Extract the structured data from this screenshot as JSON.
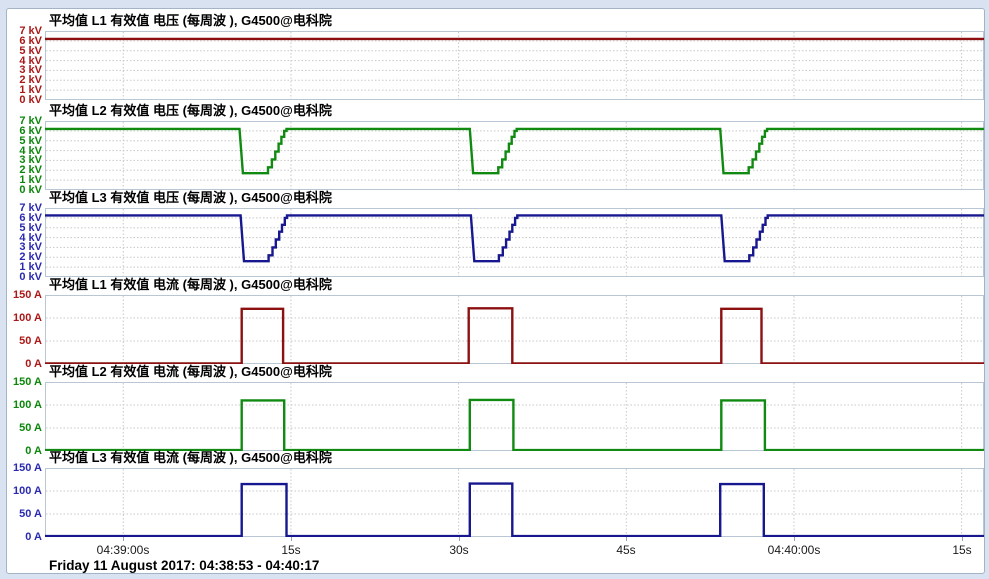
{
  "status_bar": {
    "text": "Friday 11 August 2017: 04:38:53 - 04:40:17"
  },
  "chart_data": {
    "type": "line",
    "layout": "6 stacked strip charts, shared time axis",
    "x_axis": {
      "duration_s": 84,
      "grid": true,
      "ticks": [
        {
          "t": 7,
          "label": "04:39:00s"
        },
        {
          "t": 22,
          "label": "15s"
        },
        {
          "t": 37,
          "label": "30s"
        },
        {
          "t": 52,
          "label": "45s"
        },
        {
          "t": 67,
          "label": "04:40:00s"
        },
        {
          "t": 82,
          "label": "15s"
        }
      ]
    },
    "charts": [
      {
        "id": "l1-voltage",
        "title": "平均值 L1 有效值 电压 (每周波 ), G4500@电科院",
        "unit": "kV",
        "trace_color": "#8c1010",
        "axis_color": "#aa1818",
        "ylim": [
          0,
          7
        ],
        "yticks": [
          {
            "v": 7,
            "label": "7 kV"
          },
          {
            "v": 6,
            "label": "6 kV"
          },
          {
            "v": 5,
            "label": "5 kV"
          },
          {
            "v": 4,
            "label": "4 kV"
          },
          {
            "v": 3,
            "label": "3 kV"
          },
          {
            "v": 2,
            "label": "2 kV"
          },
          {
            "v": 1,
            "label": "1 kV"
          },
          {
            "v": 0,
            "label": "0 kV"
          }
        ],
        "grid_y": [
          1,
          2,
          3,
          4,
          5,
          6
        ],
        "points": [
          [
            0,
            6.2
          ],
          [
            84,
            6.2
          ]
        ]
      },
      {
        "id": "l2-voltage",
        "title": "平均值 L2 有效值 电压 (每周波 ), G4500@电科院",
        "unit": "kV",
        "trace_color": "#108a10",
        "axis_color": "#0c860c",
        "ylim": [
          0,
          7
        ],
        "yticks": [
          {
            "v": 7,
            "label": "7 kV"
          },
          {
            "v": 6,
            "label": "6 kV"
          },
          {
            "v": 5,
            "label": "5 kV"
          },
          {
            "v": 4,
            "label": "4 kV"
          },
          {
            "v": 3,
            "label": "3 kV"
          },
          {
            "v": 2,
            "label": "2 kV"
          },
          {
            "v": 1,
            "label": "1 kV"
          },
          {
            "v": 0,
            "label": "0 kV"
          }
        ],
        "grid_y": [
          1,
          2,
          3,
          4,
          5,
          6
        ],
        "points": [
          [
            0,
            6.2
          ],
          [
            17.4,
            6.2
          ],
          [
            17.7,
            1.7
          ],
          [
            19.95,
            1.7
          ],
          [
            19.95,
            2.3
          ],
          [
            20.3,
            2.3
          ],
          [
            20.3,
            3.1
          ],
          [
            20.6,
            3.1
          ],
          [
            20.6,
            3.9
          ],
          [
            20.9,
            3.9
          ],
          [
            20.9,
            4.7
          ],
          [
            21.15,
            4.7
          ],
          [
            21.15,
            5.4
          ],
          [
            21.4,
            5.4
          ],
          [
            21.4,
            6.0
          ],
          [
            21.6,
            6.0
          ],
          [
            21.6,
            6.2
          ],
          [
            38.0,
            6.2
          ],
          [
            38.3,
            1.7
          ],
          [
            40.55,
            1.7
          ],
          [
            40.55,
            2.3
          ],
          [
            40.9,
            2.3
          ],
          [
            40.9,
            3.1
          ],
          [
            41.2,
            3.1
          ],
          [
            41.2,
            3.9
          ],
          [
            41.5,
            3.9
          ],
          [
            41.5,
            4.7
          ],
          [
            41.75,
            4.7
          ],
          [
            41.75,
            5.4
          ],
          [
            42.0,
            5.4
          ],
          [
            42.0,
            6.0
          ],
          [
            42.2,
            6.0
          ],
          [
            42.2,
            6.2
          ],
          [
            60.4,
            6.2
          ],
          [
            60.7,
            1.7
          ],
          [
            62.95,
            1.7
          ],
          [
            62.95,
            2.3
          ],
          [
            63.3,
            2.3
          ],
          [
            63.3,
            3.1
          ],
          [
            63.6,
            3.1
          ],
          [
            63.6,
            3.9
          ],
          [
            63.9,
            3.9
          ],
          [
            63.9,
            4.7
          ],
          [
            64.15,
            4.7
          ],
          [
            64.15,
            5.4
          ],
          [
            64.4,
            5.4
          ],
          [
            64.4,
            6.0
          ],
          [
            64.6,
            6.0
          ],
          [
            64.6,
            6.2
          ],
          [
            84,
            6.2
          ]
        ]
      },
      {
        "id": "l3-voltage",
        "title": "平均值 L3 有效值 电压 (每周波 ), G4500@电科院",
        "unit": "kV",
        "trace_color": "#17178f",
        "axis_color": "#2a2ab0",
        "ylim": [
          0,
          7
        ],
        "yticks": [
          {
            "v": 7,
            "label": "7 kV"
          },
          {
            "v": 6,
            "label": "6 kV"
          },
          {
            "v": 5,
            "label": "5 kV"
          },
          {
            "v": 4,
            "label": "4 kV"
          },
          {
            "v": 3,
            "label": "3 kV"
          },
          {
            "v": 2,
            "label": "2 kV"
          },
          {
            "v": 1,
            "label": "1 kV"
          },
          {
            "v": 0,
            "label": "0 kV"
          }
        ],
        "grid_y": [
          1,
          2,
          3,
          4,
          5,
          6
        ],
        "points": [
          [
            0,
            6.25
          ],
          [
            17.5,
            6.25
          ],
          [
            17.8,
            1.6
          ],
          [
            20.0,
            1.6
          ],
          [
            20.0,
            2.2
          ],
          [
            20.35,
            2.2
          ],
          [
            20.35,
            3.0
          ],
          [
            20.65,
            3.0
          ],
          [
            20.65,
            3.8
          ],
          [
            20.95,
            3.8
          ],
          [
            20.95,
            4.6
          ],
          [
            21.2,
            4.6
          ],
          [
            21.2,
            5.3
          ],
          [
            21.45,
            5.3
          ],
          [
            21.45,
            6.0
          ],
          [
            21.65,
            6.0
          ],
          [
            21.65,
            6.25
          ],
          [
            38.1,
            6.25
          ],
          [
            38.4,
            1.6
          ],
          [
            40.6,
            1.6
          ],
          [
            40.6,
            2.2
          ],
          [
            40.95,
            2.2
          ],
          [
            40.95,
            3.0
          ],
          [
            41.25,
            3.0
          ],
          [
            41.25,
            3.8
          ],
          [
            41.55,
            3.8
          ],
          [
            41.55,
            4.6
          ],
          [
            41.8,
            4.6
          ],
          [
            41.8,
            5.3
          ],
          [
            42.05,
            5.3
          ],
          [
            42.05,
            6.0
          ],
          [
            42.25,
            6.0
          ],
          [
            42.25,
            6.25
          ],
          [
            60.5,
            6.25
          ],
          [
            60.8,
            1.6
          ],
          [
            63.0,
            1.6
          ],
          [
            63.0,
            2.2
          ],
          [
            63.35,
            2.2
          ],
          [
            63.35,
            3.0
          ],
          [
            63.65,
            3.0
          ],
          [
            63.65,
            3.8
          ],
          [
            63.95,
            3.8
          ],
          [
            63.95,
            4.6
          ],
          [
            64.2,
            4.6
          ],
          [
            64.2,
            5.3
          ],
          [
            64.45,
            5.3
          ],
          [
            64.45,
            6.0
          ],
          [
            64.65,
            6.0
          ],
          [
            64.65,
            6.25
          ],
          [
            84,
            6.25
          ]
        ]
      },
      {
        "id": "l1-current",
        "title": "平均值 L1 有效值 电流 (每周波 ), G4500@电科院",
        "unit": "A",
        "trace_color": "#8c1010",
        "axis_color": "#aa1818",
        "ylim": [
          0,
          150
        ],
        "yticks": [
          {
            "v": 150,
            "label": "150 A"
          },
          {
            "v": 100,
            "label": "100 A"
          },
          {
            "v": 50,
            "label": "50 A"
          },
          {
            "v": 0,
            "label": "0 A"
          }
        ],
        "grid_y": [
          50,
          100
        ],
        "points": [
          [
            0,
            1
          ],
          [
            17.6,
            1
          ],
          [
            17.6,
            120
          ],
          [
            21.3,
            120
          ],
          [
            21.3,
            1
          ],
          [
            37.9,
            1
          ],
          [
            37.9,
            121
          ],
          [
            41.8,
            121
          ],
          [
            41.8,
            1
          ],
          [
            60.5,
            1
          ],
          [
            60.5,
            120
          ],
          [
            64.1,
            120
          ],
          [
            64.1,
            1
          ],
          [
            84,
            1
          ]
        ]
      },
      {
        "id": "l2-current",
        "title": "平均值 L2 有效值 电流 (每周波 ), G4500@电科院",
        "unit": "A",
        "trace_color": "#108a10",
        "axis_color": "#0c860c",
        "ylim": [
          0,
          150
        ],
        "yticks": [
          {
            "v": 150,
            "label": "150 A"
          },
          {
            "v": 100,
            "label": "100 A"
          },
          {
            "v": 50,
            "label": "50 A"
          },
          {
            "v": 0,
            "label": "0 A"
          }
        ],
        "grid_y": [
          50,
          100
        ],
        "points": [
          [
            0,
            2
          ],
          [
            17.6,
            2
          ],
          [
            17.6,
            110
          ],
          [
            21.4,
            110
          ],
          [
            21.4,
            2
          ],
          [
            38.0,
            2
          ],
          [
            38.0,
            111
          ],
          [
            41.9,
            111
          ],
          [
            41.9,
            2
          ],
          [
            60.5,
            2
          ],
          [
            60.5,
            110
          ],
          [
            64.4,
            110
          ],
          [
            64.4,
            2
          ],
          [
            84,
            2
          ]
        ]
      },
      {
        "id": "l3-current",
        "title": "平均值 L3 有效值 电流 (每周波 ), G4500@电科院",
        "unit": "A",
        "trace_color": "#17178f",
        "axis_color": "#2a2ab0",
        "ylim": [
          0,
          150
        ],
        "yticks": [
          {
            "v": 150,
            "label": "150 A"
          },
          {
            "v": 100,
            "label": "100 A"
          },
          {
            "v": 50,
            "label": "50 A"
          },
          {
            "v": 0,
            "label": "0 A"
          }
        ],
        "grid_y": [
          50,
          100
        ],
        "points": [
          [
            0,
            2
          ],
          [
            17.6,
            2
          ],
          [
            17.6,
            115
          ],
          [
            21.6,
            115
          ],
          [
            21.6,
            2
          ],
          [
            38.0,
            2
          ],
          [
            38.0,
            116
          ],
          [
            41.8,
            116
          ],
          [
            41.8,
            2
          ],
          [
            60.4,
            2
          ],
          [
            60.4,
            115
          ],
          [
            64.3,
            115
          ],
          [
            64.3,
            2
          ],
          [
            84,
            2
          ]
        ]
      }
    ]
  }
}
